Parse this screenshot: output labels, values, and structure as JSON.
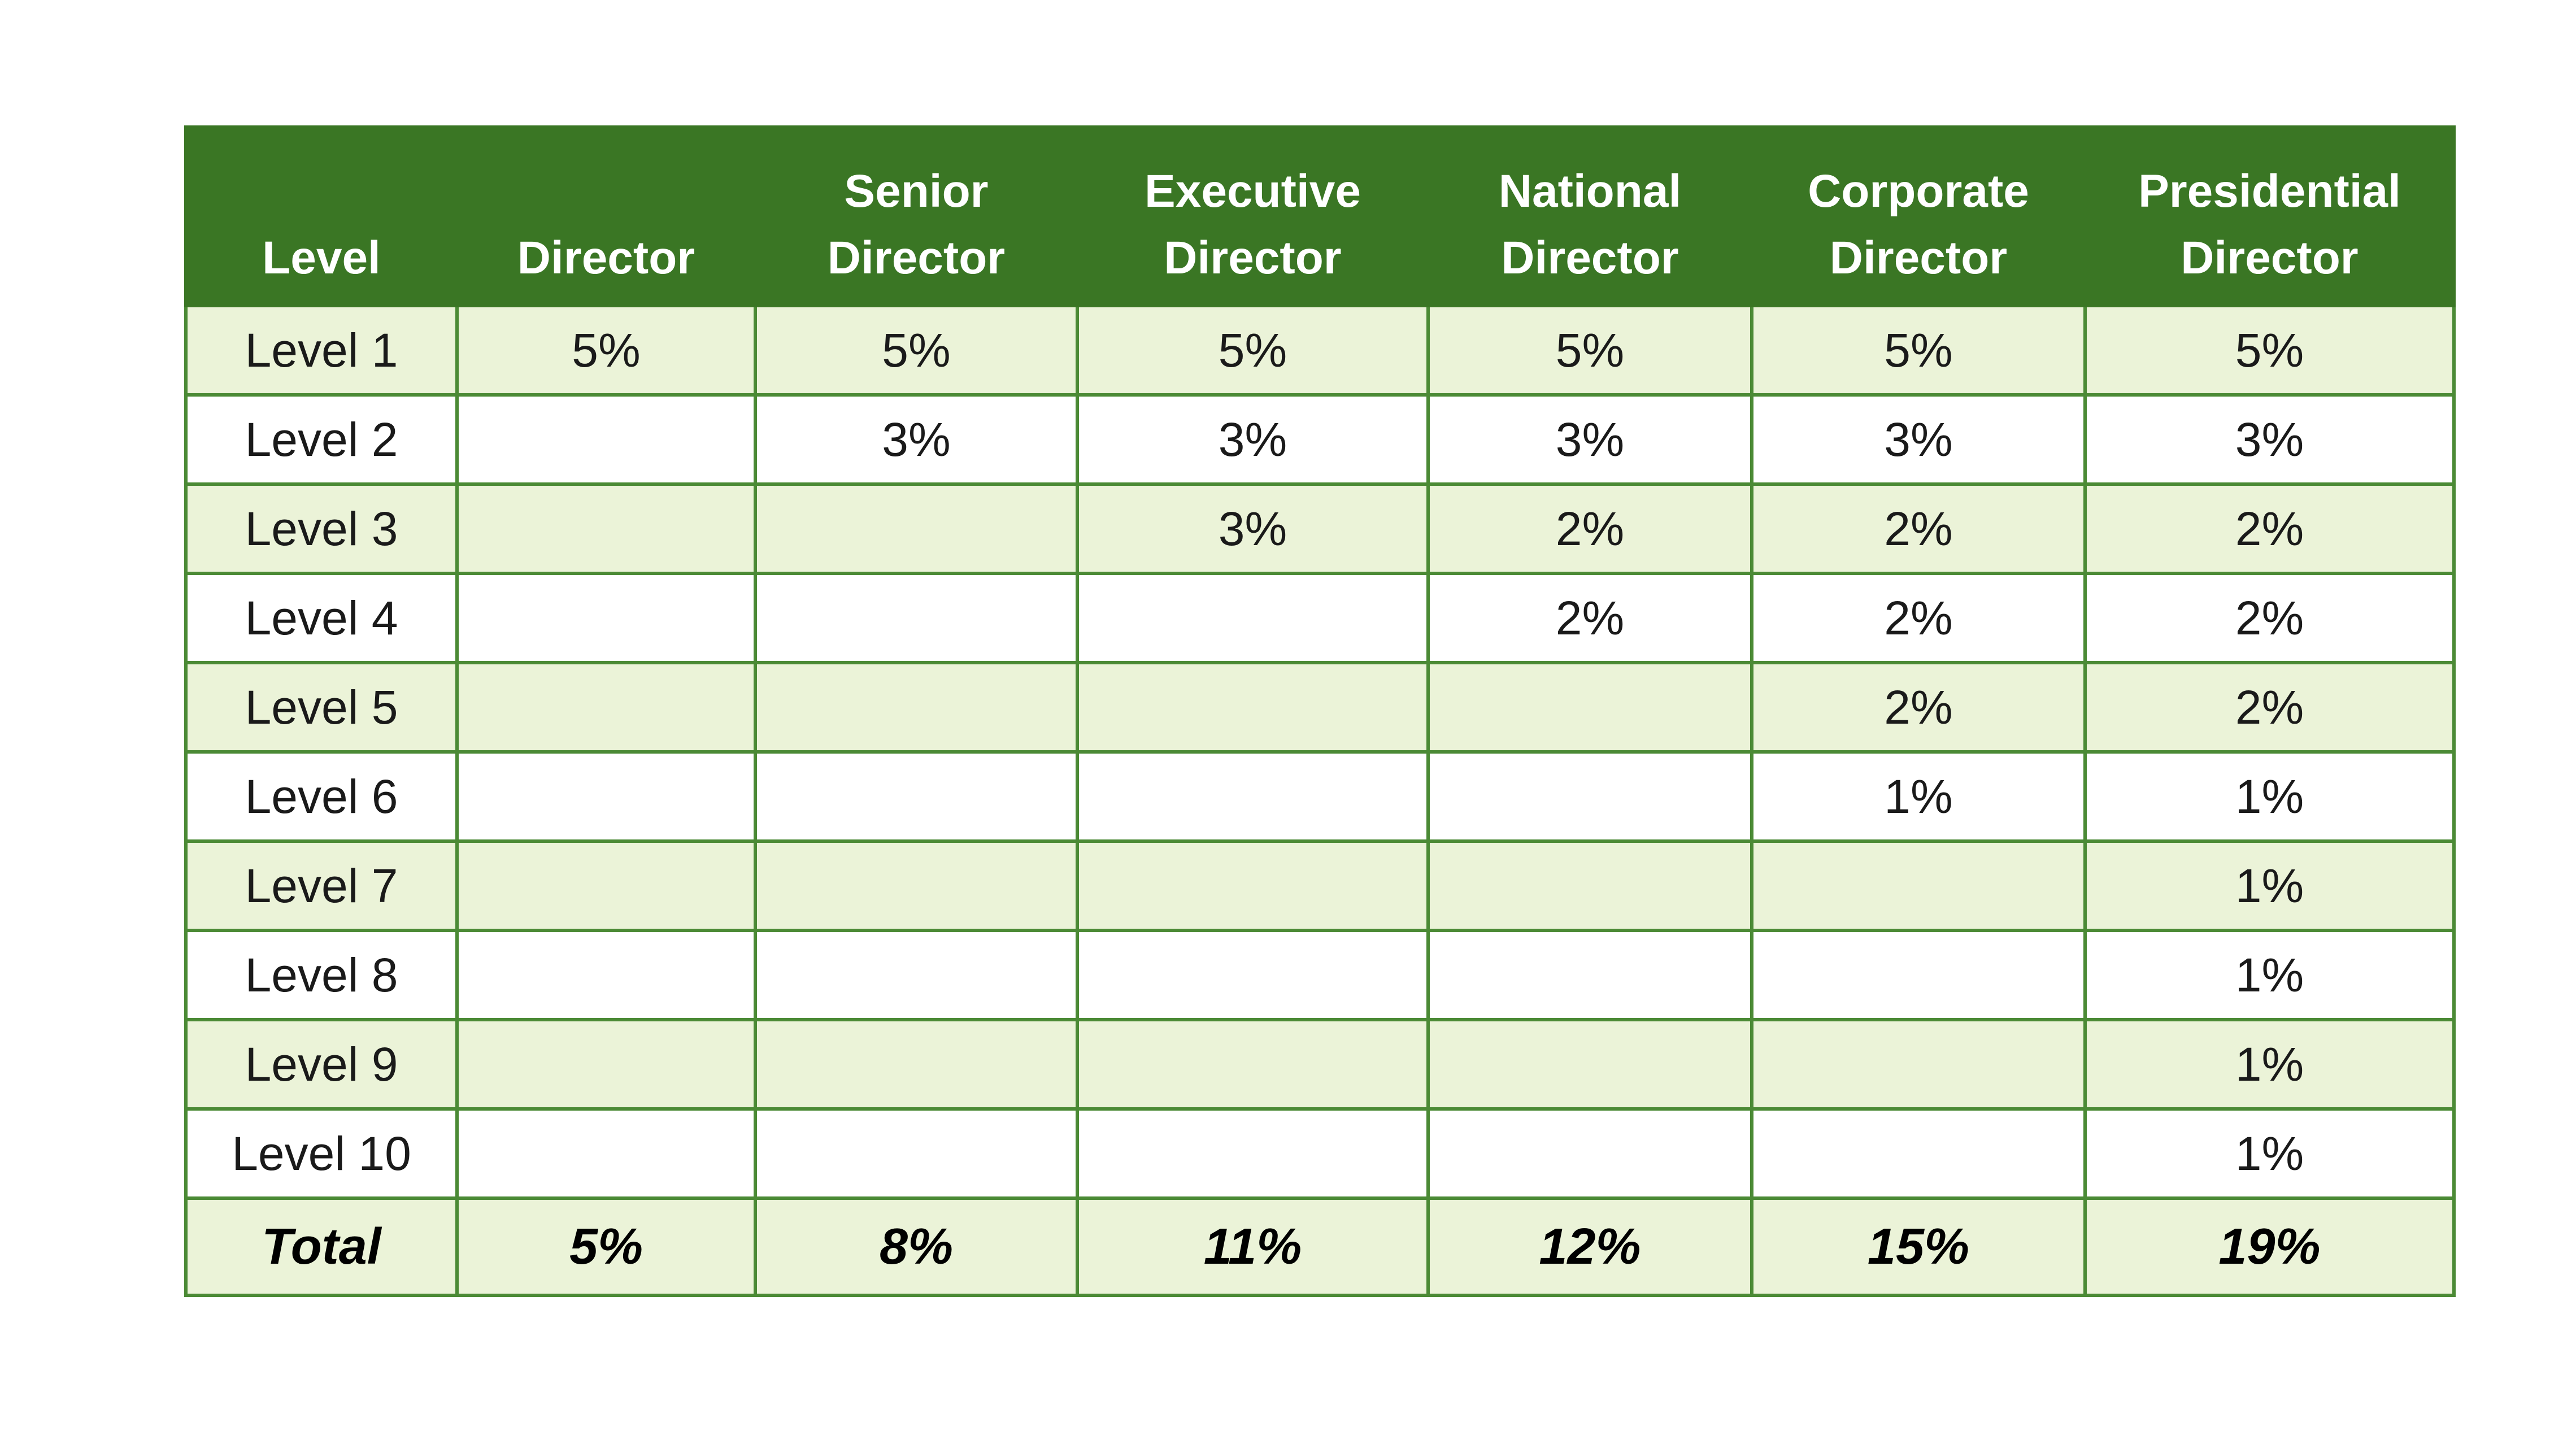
{
  "colors": {
    "header_bg": "#3a7624",
    "header_text": "#ffffff",
    "row_alt_bg": "#ebf3d8",
    "row_bg": "#ffffff",
    "grid_line": "#4b8a35"
  },
  "table": {
    "headers": [
      [
        "Level"
      ],
      [
        "Director"
      ],
      [
        "Senior",
        "Director"
      ],
      [
        "Executive",
        "Director"
      ],
      [
        "National",
        "Director"
      ],
      [
        "Corporate",
        "Director"
      ],
      [
        "Presidential",
        "Director"
      ]
    ],
    "rows": [
      [
        "Level 1",
        "5%",
        "5%",
        "5%",
        "5%",
        "5%",
        "5%"
      ],
      [
        "Level 2",
        "",
        "3%",
        "3%",
        "3%",
        "3%",
        "3%"
      ],
      [
        "Level 3",
        "",
        "",
        "3%",
        "2%",
        "2%",
        "2%"
      ],
      [
        "Level 4",
        "",
        "",
        "",
        "2%",
        "2%",
        "2%"
      ],
      [
        "Level 5",
        "",
        "",
        "",
        "",
        "2%",
        "2%"
      ],
      [
        "Level 6",
        "",
        "",
        "",
        "",
        "1%",
        "1%"
      ],
      [
        "Level 7",
        "",
        "",
        "",
        "",
        "",
        "1%"
      ],
      [
        "Level 8",
        "",
        "",
        "",
        "",
        "",
        "1%"
      ],
      [
        "Level 9",
        "",
        "",
        "",
        "",
        "",
        "1%"
      ],
      [
        "Level 10",
        "",
        "",
        "",
        "",
        "",
        "1%"
      ]
    ],
    "total": [
      "Total",
      "5%",
      "8%",
      "11%",
      "12%",
      "15%",
      "19%"
    ]
  }
}
